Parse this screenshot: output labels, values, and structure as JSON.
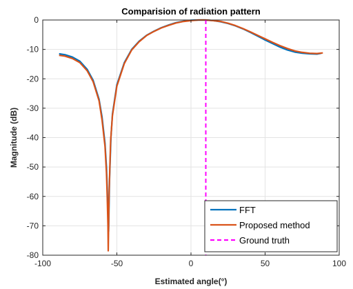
{
  "chart_data": {
    "type": "line",
    "title": "Comparision of radiation pattern",
    "xlabel": "Estimated angle(°)",
    "ylabel": "Magnitude (dB)",
    "xlim": [
      -100,
      100
    ],
    "ylim": [
      -80,
      0
    ],
    "xticks": [
      -100,
      -50,
      0,
      50,
      100
    ],
    "yticks": [
      0,
      -10,
      -20,
      -30,
      -40,
      -50,
      -60,
      -70,
      -80
    ],
    "grid": true,
    "legend_position": "bottom-right",
    "series": [
      {
        "name": "FFT",
        "color": "#0072BD",
        "style": "solid",
        "x": [
          -89,
          -85,
          -80,
          -75,
          -70,
          -66,
          -62,
          -60,
          -58,
          -57,
          -56.5,
          -56,
          -55.6,
          -55,
          -54,
          -53,
          -50,
          -45,
          -40,
          -35,
          -30,
          -25,
          -20,
          -15,
          -10,
          -5,
          0,
          5,
          10,
          15,
          20,
          25,
          30,
          35,
          40,
          45,
          50,
          55,
          60,
          65,
          70,
          75,
          80,
          85,
          88
        ],
        "y": [
          -11.5,
          -11.8,
          -12.6,
          -14.0,
          -16.8,
          -20.5,
          -27.0,
          -33.0,
          -42.0,
          -50.0,
          -57.0,
          -66.0,
          -72.0,
          -55.0,
          -40.0,
          -32.0,
          -22.0,
          -14.5,
          -10.0,
          -7.2,
          -5.2,
          -3.8,
          -2.6,
          -1.7,
          -0.9,
          -0.4,
          -0.1,
          0.0,
          0.0,
          -0.2,
          -0.6,
          -1.2,
          -2.0,
          -3.0,
          -4.2,
          -5.5,
          -6.8,
          -8.0,
          -9.2,
          -10.2,
          -10.9,
          -11.3,
          -11.5,
          -11.6,
          -11.3
        ]
      },
      {
        "name": "Proposed method",
        "color": "#D95319",
        "style": "solid",
        "x": [
          -89,
          -85,
          -80,
          -75,
          -70,
          -66,
          -62,
          -60,
          -58,
          -57,
          -56.5,
          -56,
          -55.8,
          -55.2,
          -54.2,
          -53,
          -50,
          -45,
          -40,
          -35,
          -30,
          -25,
          -20,
          -15,
          -10,
          -5,
          0,
          5,
          10,
          15,
          20,
          25,
          30,
          35,
          40,
          45,
          50,
          55,
          60,
          65,
          70,
          75,
          80,
          85,
          89
        ],
        "y": [
          -12.0,
          -12.3,
          -13.1,
          -14.5,
          -17.3,
          -21.0,
          -27.5,
          -34.0,
          -43.0,
          -52.0,
          -60.0,
          -70.0,
          -78.5,
          -58.0,
          -41.0,
          -32.5,
          -22.5,
          -14.8,
          -10.2,
          -7.4,
          -5.3,
          -3.9,
          -2.7,
          -1.8,
          -1.0,
          -0.5,
          -0.2,
          0.0,
          0.0,
          -0.2,
          -0.5,
          -1.1,
          -1.9,
          -2.9,
          -4.0,
          -5.2,
          -6.4,
          -7.6,
          -8.7,
          -9.7,
          -10.5,
          -11.0,
          -11.3,
          -11.4,
          -11.2
        ]
      },
      {
        "name": "Ground truth",
        "color": "#FF00FF",
        "style": "dashed",
        "x": [
          10,
          10
        ],
        "y": [
          0,
          -80
        ]
      }
    ]
  }
}
